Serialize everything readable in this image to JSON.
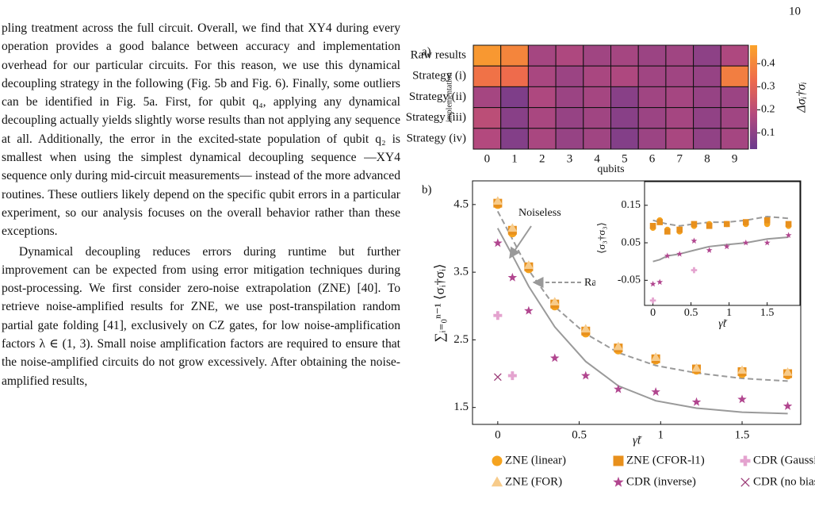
{
  "page_number": "10",
  "paragraphs": [
    "pling treatment across the full circuit. Overall, we find that XY4 during every operation provides a good balance between accuracy and implementation overhead for our particular circuits. For this reason, we use this dynamical decoupling strategy in the following (Fig. 5b and Fig. 6). Finally, some outliers can be identified in Fig. 5a. First, for qubit q₄, applying any dynamical decoupling actually yields slightly worse results than not applying any sequence at all. Additionally, the error in the excited-state population of qubit q₂ is smallest when using the simplest dynamical decoupling sequence —XY4 sequence only during mid-circuit measurements— instead of the more advanced routines. These outliers likely depend on the specific qubit errors in a particular experiment, so our analysis focuses on the overall behavior rather than these exceptions.",
    "Dynamical decoupling reduces errors during runtime but further improvement can be expected from using error mitigation techniques during post-processing. We first consider zero-noise extrapolation (ZNE) [40]. To retrieve noise-amplified results for ZNE, we use post-transpilation random partial gate folding [41], exclusively on CZ gates, for low noise-amplification factors λ ∈ (1, 3). Small noise amplification factors are required to ensure that the noise-amplified circuits do not grow excessively. After obtaining the noise-amplified results,"
  ],
  "figure": {
    "a": {
      "label": "a)",
      "type": "heatmap",
      "rows": [
        "Raw results",
        "Strategy (i)",
        "Strategy (ii)",
        "Strategy (iii)",
        "Strategy (iv)"
      ],
      "columns": [
        0,
        1,
        2,
        3,
        4,
        5,
        6,
        7,
        8,
        9
      ],
      "ylabel": "implementation",
      "xlabel": "qubits",
      "values": [
        [
          0.45,
          0.4,
          0.15,
          0.17,
          0.14,
          0.15,
          0.13,
          0.14,
          0.1,
          0.17
        ],
        [
          0.35,
          0.33,
          0.16,
          0.13,
          0.16,
          0.17,
          0.14,
          0.14,
          0.12,
          0.38
        ],
        [
          0.15,
          0.07,
          0.17,
          0.13,
          0.15,
          0.09,
          0.14,
          0.15,
          0.12,
          0.13
        ],
        [
          0.2,
          0.09,
          0.16,
          0.12,
          0.14,
          0.09,
          0.13,
          0.15,
          0.11,
          0.14
        ],
        [
          0.18,
          0.08,
          0.16,
          0.12,
          0.14,
          0.08,
          0.13,
          0.16,
          0.11,
          0.15
        ]
      ],
      "colorbar_label": "Δσᵢ†σᵢ",
      "clim": [
        0.03,
        0.48
      ],
      "colorbar_ticks": [
        0.1,
        0.2,
        0.3,
        0.4
      ],
      "colormap": [
        "#6b3a8d",
        "#b3497e",
        "#ee6b4c",
        "#fba32a"
      ]
    },
    "b": {
      "label": "b)",
      "type": "scatter",
      "xlabel": "γ̃t",
      "ylabel": "∑ᵢ₌₀ⁿ⁻¹ ⟨σᵢ†σᵢ⟩",
      "x": [
        0,
        0.09,
        0.19,
        0.35,
        0.54,
        0.74,
        0.97,
        1.22,
        1.5,
        1.78
      ],
      "xlim": [
        -0.155,
        1.86
      ],
      "ylim": [
        1.25,
        4.85
      ],
      "xticks": [
        0,
        {
          "value": 0.5,
          "label": "0.5"
        },
        1,
        {
          "value": 1.5,
          "label": "1.5"
        }
      ],
      "yticks": [
        {
          "value": 1.5,
          "label": "1.5"
        },
        {
          "value": 2.5,
          "label": "2.5"
        },
        {
          "value": 3.5,
          "label": "3.5"
        },
        {
          "value": 4.5,
          "label": "4.5"
        }
      ],
      "series": [
        {
          "name": "ZNE (linear)",
          "marker": "circle",
          "color": "#f5a31f",
          "values": [
            4.5,
            4.08,
            3.55,
            3.0,
            2.6,
            2.35,
            2.2,
            2.05,
            2.0,
            1.98
          ]
        },
        {
          "name": "ZNE (CFOR-l1)",
          "marker": "square",
          "color": "#e8901c",
          "values": [
            4.52,
            4.12,
            3.58,
            3.03,
            2.63,
            2.38,
            2.22,
            2.07,
            2.03,
            2.0
          ]
        },
        {
          "name": "CDR (Gaussian)",
          "marker": "plus",
          "color": "#e4a3cf",
          "values": [
            2.86,
            1.97,
            null,
            null,
            null,
            null,
            null,
            null,
            null,
            null
          ]
        },
        {
          "name": "ZNE (FOR)",
          "marker": "triangle",
          "color": "#f7cb8a",
          "values": [
            4.55,
            4.15,
            3.6,
            3.06,
            2.66,
            2.4,
            2.24,
            2.08,
            2.05,
            2.02
          ]
        },
        {
          "name": "CDR (inverse)",
          "marker": "star",
          "color": "#b1468f",
          "values": [
            3.93,
            3.42,
            2.93,
            2.23,
            1.97,
            1.77,
            1.73,
            1.58,
            1.62,
            1.52
          ]
        },
        {
          "name": "CDR (no bias)",
          "marker": "x",
          "color": "#9b3b77",
          "values": [
            1.95,
            null,
            null,
            null,
            null,
            null,
            null,
            null,
            null,
            null
          ]
        }
      ],
      "lines": [
        {
          "label": "Noiseless",
          "style": "solid",
          "color": "#9a9a9a",
          "values": [
            4.15,
            3.75,
            3.29,
            2.69,
            2.18,
            1.82,
            1.6,
            1.49,
            1.43,
            1.41
          ]
        },
        {
          "label": "Raw",
          "style": "dashed",
          "color": "#9a9a9a",
          "values": [
            4.4,
            3.99,
            3.53,
            2.99,
            2.59,
            2.31,
            2.12,
            2.01,
            1.93,
            1.89
          ]
        }
      ],
      "inset": {
        "xlabel": "γ̃t",
        "ylabel": "⟨σ₃†σ₃⟩",
        "x": [
          0,
          0.09,
          0.19,
          0.35,
          0.54,
          0.74,
          0.97,
          1.22,
          1.5,
          1.78
        ],
        "xlim": [
          -0.11,
          1.93
        ],
        "ylim": [
          -0.117,
          0.213
        ],
        "xticks": [
          0,
          {
            "value": 0.5,
            "label": "0.5"
          },
          1,
          {
            "value": 1.5,
            "label": "1.5"
          }
        ],
        "yticks": [
          -0.05,
          0.05,
          0.15
        ],
        "series": [
          {
            "marker": "circle",
            "color": "#f5a31f",
            "values": [
              0.09,
              0.11,
              0.085,
              0.08,
              0.095,
              0.1,
              0.1,
              0.1,
              0.1,
              0.095
            ]
          },
          {
            "marker": "square",
            "color": "#e8901c",
            "values": [
              0.095,
              0.105,
              0.08,
              0.085,
              0.1,
              0.095,
              0.1,
              0.105,
              0.11,
              0.1
            ]
          },
          {
            "marker": "plus",
            "color": "#e4a3cf",
            "values": [
              -0.104,
              null,
              null,
              null,
              -0.023,
              null,
              null,
              null,
              null,
              null
            ]
          },
          {
            "marker": "star",
            "color": "#b1468f",
            "values": [
              -0.06,
              -0.055,
              0.015,
              0.02,
              0.055,
              0.03,
              0.04,
              0.05,
              0.05,
              0.07
            ]
          }
        ],
        "lines": [
          {
            "style": "solid",
            "color": "#9a9a9a",
            "values": [
              0.0,
              0.005,
              0.015,
              0.02,
              0.03,
              0.04,
              0.045,
              0.05,
              0.06,
              0.065
            ]
          },
          {
            "style": "dashed",
            "color": "#9a9a9a",
            "values": [
              0.11,
              0.105,
              0.1,
              0.095,
              0.1,
              0.105,
              0.105,
              0.11,
              0.12,
              0.115
            ]
          }
        ]
      }
    }
  }
}
